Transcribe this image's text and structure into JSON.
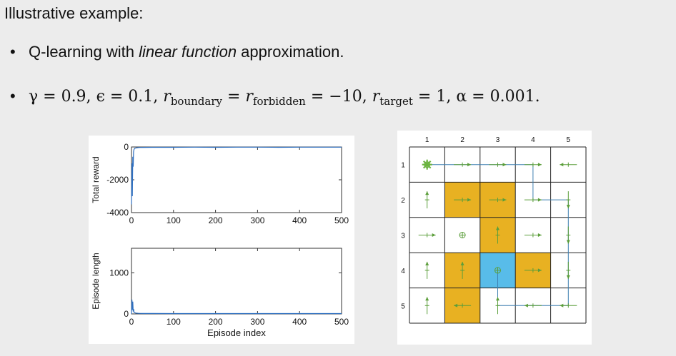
{
  "heading": "Illustrative example:",
  "bullets": [
    {
      "pre": "Q-learning with ",
      "em": "linear function",
      "post": " approximation."
    },
    {
      "text": "γ = 0.9, ϵ = 0.1, r_boundary = r_forbidden = −10, r_target = 1, α = 0.001."
    }
  ],
  "params": {
    "gamma": "γ = 0.9,",
    "epsilon": "ϵ = 0.1,",
    "r_sym": "r",
    "boundary": "boundary",
    "forbidden": "forbidden",
    "target": "target",
    "eq_neg10": "= −10,",
    "eq_1": "= 1,",
    "alpha": "α = 0.001.",
    "eq": "="
  },
  "chart_data": [
    {
      "type": "line",
      "ylabel": "Total reward",
      "xlim": [
        0,
        500
      ],
      "ylim": [
        -4000,
        0
      ],
      "xticks": [
        0,
        100,
        200,
        300,
        400,
        500
      ],
      "yticks": [
        0,
        -2000,
        -4000
      ],
      "x": [
        0,
        1,
        2,
        3,
        4,
        5,
        6,
        8,
        10,
        15,
        20,
        30,
        50,
        100,
        150,
        200,
        250,
        300,
        350,
        400,
        450,
        500
      ],
      "y": [
        -3500,
        -1000,
        -3000,
        -600,
        -1200,
        -300,
        -150,
        -80,
        -60,
        -40,
        -30,
        -25,
        -20,
        -20,
        -15,
        -20,
        -15,
        -15,
        -20,
        -15,
        -15,
        -15
      ]
    },
    {
      "type": "line",
      "ylabel": "Episode length",
      "xlabel": "Episode index",
      "xlim": [
        0,
        500
      ],
      "ylim": [
        0,
        1600
      ],
      "xticks": [
        0,
        100,
        200,
        300,
        400,
        500
      ],
      "yticks": [
        0,
        1000
      ],
      "x": [
        0,
        1,
        2,
        3,
        4,
        5,
        6,
        8,
        10,
        15,
        20,
        30,
        50,
        100,
        150,
        200,
        250,
        300,
        350,
        400,
        450,
        500
      ],
      "y": [
        0,
        350,
        100,
        300,
        60,
        120,
        40,
        30,
        20,
        15,
        12,
        10,
        10,
        8,
        8,
        8,
        8,
        8,
        8,
        8,
        8,
        8
      ]
    }
  ],
  "grid": {
    "col_labels": [
      "1",
      "2",
      "3",
      "4",
      "5"
    ],
    "row_labels": [
      "1",
      "2",
      "3",
      "4",
      "5"
    ],
    "colors": {
      "forbidden": "#e8b122",
      "target": "#58bce9",
      "arrow": "#5b9e3a",
      "path": "#3d7fb0"
    },
    "forbidden": [
      [
        2,
        2
      ],
      [
        2,
        3
      ],
      [
        3,
        3
      ],
      [
        4,
        2
      ],
      [
        4,
        4
      ],
      [
        5,
        2
      ]
    ],
    "target": [
      4,
      3
    ],
    "start": [
      1,
      1
    ],
    "actions": [
      [
        "stay",
        "right",
        "right",
        "right",
        "left"
      ],
      [
        "up",
        "right",
        "right",
        "right",
        "down"
      ],
      [
        "right",
        "stay",
        "up",
        "right",
        "down"
      ],
      [
        "up",
        "up",
        "stay",
        "right",
        "down"
      ],
      [
        "up",
        "left",
        "up",
        "left",
        "left"
      ]
    ],
    "trajectory": [
      [
        1,
        1
      ],
      [
        1,
        2
      ],
      [
        1,
        3
      ],
      [
        1,
        4
      ],
      [
        2,
        4
      ],
      [
        2,
        5
      ],
      [
        3,
        5
      ],
      [
        4,
        5
      ],
      [
        5,
        5
      ],
      [
        5,
        4
      ],
      [
        5,
        3
      ],
      [
        4,
        3
      ]
    ]
  }
}
